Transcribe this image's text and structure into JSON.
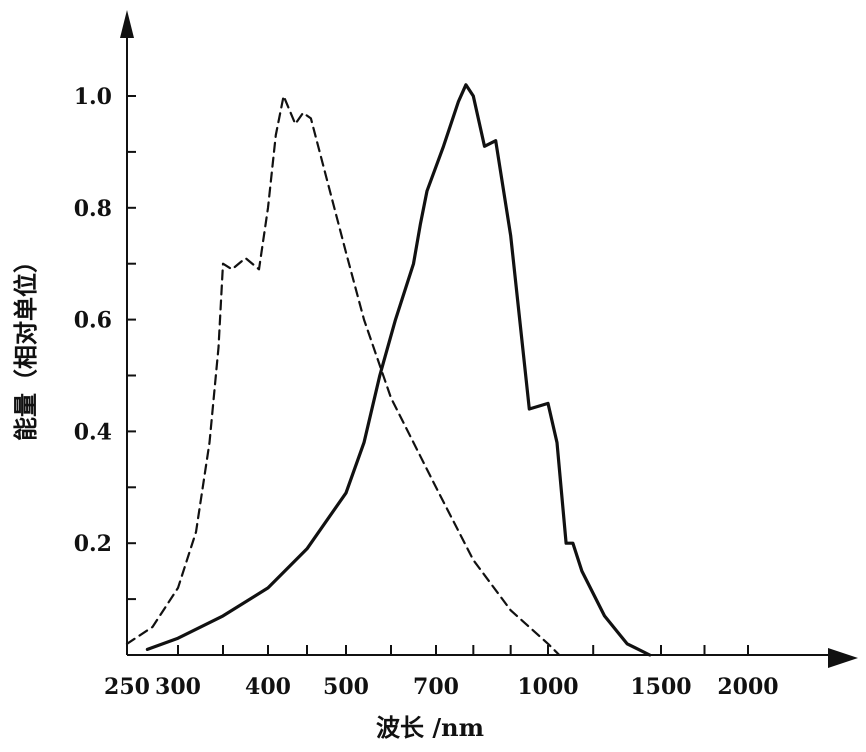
{
  "chart_data": {
    "type": "line",
    "xlabel": "波长 /nm",
    "ylabel": "能量（相对单位）",
    "x_ticks": [
      250,
      300,
      400,
      500,
      700,
      1000,
      1500,
      2000
    ],
    "x_tick_labels": [
      "250",
      "300",
      "400",
      "500",
      "700",
      "1000",
      "1500",
      "2000"
    ],
    "y_ticks": [
      0.2,
      0.4,
      0.6,
      0.8,
      1.0
    ],
    "y_tick_labels": [
      "0.2",
      "0.4",
      "0.6",
      "0.8",
      "1.0"
    ],
    "ylim": [
      0,
      1.05
    ],
    "grid": false,
    "series": [
      {
        "style": "dashed",
        "color": "#111111",
        "points": [
          [
            250,
            0.02
          ],
          [
            275,
            0.05
          ],
          [
            300,
            0.12
          ],
          [
            320,
            0.22
          ],
          [
            335,
            0.38
          ],
          [
            345,
            0.55
          ],
          [
            350,
            0.7
          ],
          [
            360,
            0.69
          ],
          [
            375,
            0.71
          ],
          [
            390,
            0.69
          ],
          [
            400,
            0.8
          ],
          [
            410,
            0.93
          ],
          [
            420,
            1.0
          ],
          [
            435,
            0.95
          ],
          [
            445,
            0.97
          ],
          [
            455,
            0.96
          ],
          [
            470,
            0.88
          ],
          [
            500,
            0.72
          ],
          [
            540,
            0.6
          ],
          [
            600,
            0.46
          ],
          [
            700,
            0.3
          ],
          [
            800,
            0.17
          ],
          [
            900,
            0.08
          ],
          [
            1000,
            0.02
          ],
          [
            1050,
            0.0
          ]
        ]
      },
      {
        "style": "solid",
        "color": "#111111",
        "points": [
          [
            270,
            0.01
          ],
          [
            300,
            0.03
          ],
          [
            350,
            0.07
          ],
          [
            400,
            0.12
          ],
          [
            450,
            0.19
          ],
          [
            500,
            0.29
          ],
          [
            540,
            0.38
          ],
          [
            575,
            0.5
          ],
          [
            610,
            0.6
          ],
          [
            650,
            0.7
          ],
          [
            665,
            0.77
          ],
          [
            680,
            0.83
          ],
          [
            720,
            0.91
          ],
          [
            760,
            0.99
          ],
          [
            780,
            1.02
          ],
          [
            800,
            1.0
          ],
          [
            830,
            0.91
          ],
          [
            860,
            0.92
          ],
          [
            900,
            0.75
          ],
          [
            950,
            0.44
          ],
          [
            1000,
            0.45
          ],
          [
            1040,
            0.38
          ],
          [
            1080,
            0.2
          ],
          [
            1110,
            0.2
          ],
          [
            1150,
            0.15
          ],
          [
            1250,
            0.07
          ],
          [
            1350,
            0.02
          ],
          [
            1450,
            0.0
          ]
        ]
      }
    ]
  }
}
